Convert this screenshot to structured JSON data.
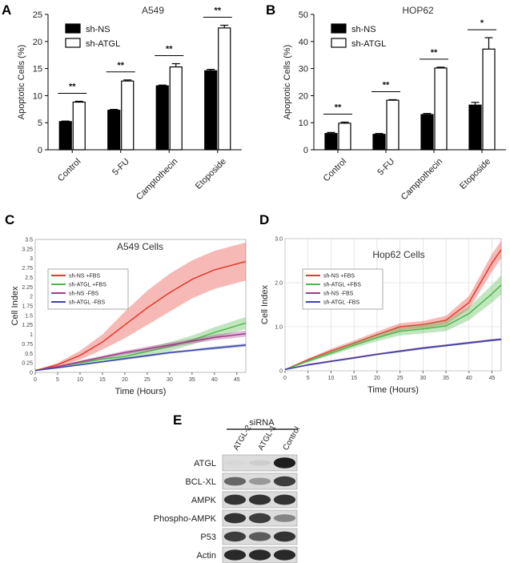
{
  "panels": {
    "A": {
      "letter": "A",
      "chart_data": {
        "type": "bar",
        "title": "A549",
        "ylabel": "Apoptotic Cells (%)",
        "ylim": [
          0,
          25
        ],
        "yticks": [
          0,
          5,
          10,
          15,
          20,
          25
        ],
        "categories": [
          "Control",
          "5-FU",
          "Camptothecin",
          "Etoposide"
        ],
        "series": [
          {
            "name": "sh-NS",
            "values": [
              5.2,
              7.3,
              11.8,
              14.6
            ],
            "errors": [
              0.1,
              0.15,
              0.15,
              0.25
            ],
            "color": "#000000"
          },
          {
            "name": "sh-ATGL",
            "values": [
              8.8,
              12.7,
              15.3,
              22.5
            ],
            "errors": [
              0.15,
              0.2,
              0.6,
              0.5
            ],
            "color": "#ffffff"
          }
        ],
        "significance": [
          "**",
          "**",
          "**",
          "**"
        ]
      }
    },
    "B": {
      "letter": "B",
      "chart_data": {
        "type": "bar",
        "title": "HOP62",
        "ylabel": "Apoptotic Cells (%)",
        "ylim": [
          0,
          50
        ],
        "yticks": [
          0,
          10,
          20,
          30,
          40,
          50
        ],
        "categories": [
          "Control",
          "5-FU",
          "Camptothecin",
          "Etoposide"
        ],
        "series": [
          {
            "name": "sh-NS",
            "values": [
              6,
              5.7,
              13,
              16.5
            ],
            "errors": [
              0.4,
              0.3,
              0.4,
              1.0
            ],
            "color": "#000000"
          },
          {
            "name": "sh-ATGL",
            "values": [
              9.8,
              18.3,
              30.2,
              37.2
            ],
            "errors": [
              0.4,
              0.2,
              0.3,
              4.2
            ],
            "color": "#ffffff"
          }
        ],
        "significance": [
          "**",
          "**",
          "**",
          "*"
        ]
      }
    },
    "C": {
      "letter": "C",
      "chart_data": {
        "type": "line",
        "title": "A549 Cells",
        "xlabel": "Time (Hours)",
        "ylabel": "Cell Index",
        "xlim": [
          0,
          47
        ],
        "ylim": [
          0,
          3.5
        ],
        "xticks": [
          0,
          5,
          10,
          15,
          20,
          25,
          30,
          35,
          40,
          45
        ],
        "yticks": [
          "0",
          "0.25",
          "0.5",
          "0.75",
          "1",
          "1.25",
          "1.5",
          "1.75",
          "2",
          "2.25",
          "2.5",
          "2.75",
          "3",
          "3.25",
          "3.5"
        ],
        "x": [
          0,
          5,
          10,
          15,
          20,
          25,
          30,
          35,
          40,
          47
        ],
        "series": [
          {
            "name": "sh-NS  +FBS",
            "color": "#e8372c",
            "values": [
              0.05,
              0.2,
              0.45,
              0.8,
              1.25,
              1.7,
              2.1,
              2.45,
              2.7,
              2.92
            ],
            "spread": [
              0.0,
              0.05,
              0.12,
              0.2,
              0.35,
              0.45,
              0.5,
              0.5,
              0.5,
              0.5
            ]
          },
          {
            "name": "sh-ATGL  +FBS",
            "color": "#4cb848",
            "values": [
              0.05,
              0.15,
              0.25,
              0.35,
              0.42,
              0.55,
              0.68,
              0.85,
              1.05,
              1.3
            ],
            "spread": [
              0.0,
              0.02,
              0.04,
              0.06,
              0.08,
              0.1,
              0.12,
              0.12,
              0.14,
              0.16
            ]
          },
          {
            "name": "sh-NS  -FBS",
            "color": "#a23a8c",
            "values": [
              0.05,
              0.15,
              0.28,
              0.4,
              0.52,
              0.62,
              0.72,
              0.82,
              0.92,
              1.02
            ],
            "spread": [
              0.0,
              0.02,
              0.03,
              0.04,
              0.05,
              0.06,
              0.06,
              0.06,
              0.07,
              0.08
            ]
          },
          {
            "name": "sh-ATGL  -FBS",
            "color": "#3b48a8",
            "values": [
              0.05,
              0.12,
              0.2,
              0.28,
              0.36,
              0.44,
              0.52,
              0.58,
              0.64,
              0.72
            ],
            "spread": [
              0.0,
              0.01,
              0.02,
              0.02,
              0.03,
              0.03,
              0.03,
              0.03,
              0.04,
              0.04
            ]
          }
        ]
      }
    },
    "D": {
      "letter": "D",
      "chart_data": {
        "type": "line",
        "title": "Hop62 Cells",
        "xlabel": "Time (Hours)",
        "ylabel": "Cell Index",
        "xlim": [
          0,
          47
        ],
        "ylim": [
          0,
          3
        ],
        "xticks": [
          0,
          5,
          10,
          15,
          20,
          25,
          30,
          35,
          40,
          45
        ],
        "yticks": [
          "0",
          "1.0",
          "2.0",
          "3.0"
        ],
        "x": [
          0,
          5,
          10,
          15,
          20,
          25,
          30,
          35,
          40,
          45,
          47
        ],
        "series": [
          {
            "name": "sh-NS  +FBS",
            "color": "#e8372c",
            "values": [
              0.03,
              0.25,
              0.45,
              0.63,
              0.82,
              1.0,
              1.05,
              1.15,
              1.55,
              2.45,
              2.75
            ],
            "spread": [
              0.0,
              0.03,
              0.05,
              0.06,
              0.07,
              0.08,
              0.08,
              0.1,
              0.15,
              0.2,
              0.2
            ]
          },
          {
            "name": "sh-ATGL  +FBS",
            "color": "#4cb848",
            "values": [
              0.03,
              0.22,
              0.4,
              0.58,
              0.75,
              0.9,
              0.95,
              1.02,
              1.3,
              1.75,
              1.95
            ],
            "spread": [
              0.0,
              0.03,
              0.05,
              0.06,
              0.08,
              0.1,
              0.1,
              0.12,
              0.15,
              0.2,
              0.22
            ]
          },
          {
            "name": "sh-NS  -FBS",
            "color": "#a23a8c",
            "values": [
              0.03,
              0.14,
              0.22,
              0.3,
              0.38,
              0.45,
              0.52,
              0.58,
              0.64,
              0.7,
              0.72
            ],
            "spread": [
              0.0,
              0.01,
              0.01,
              0.01,
              0.01,
              0.02,
              0.02,
              0.02,
              0.02,
              0.02,
              0.02
            ]
          },
          {
            "name": "sh-ATGL  -FBS",
            "color": "#3b48a8",
            "values": [
              0.03,
              0.13,
              0.21,
              0.29,
              0.37,
              0.44,
              0.51,
              0.57,
              0.63,
              0.69,
              0.71
            ],
            "spread": [
              0.0,
              0.01,
              0.01,
              0.01,
              0.01,
              0.02,
              0.02,
              0.02,
              0.02,
              0.02,
              0.02
            ]
          }
        ]
      }
    },
    "E": {
      "letter": "E",
      "header": "siRNA",
      "lanes": [
        "ATGL-2",
        "ATGL-1",
        "Control"
      ],
      "rows": [
        {
          "label": "ATGL",
          "intensity": [
            0.05,
            0.1,
            0.95
          ]
        },
        {
          "label": "BCL-XL",
          "intensity": [
            0.6,
            0.35,
            0.8
          ]
        },
        {
          "label": "AMPK",
          "intensity": [
            0.85,
            0.85,
            0.85
          ]
        },
        {
          "label": "Phospho-AMPK",
          "intensity": [
            0.85,
            0.8,
            0.45
          ]
        },
        {
          "label": "P53",
          "intensity": [
            0.8,
            0.65,
            0.85
          ]
        },
        {
          "label": "Actin",
          "intensity": [
            0.9,
            0.9,
            0.9
          ]
        }
      ]
    }
  }
}
